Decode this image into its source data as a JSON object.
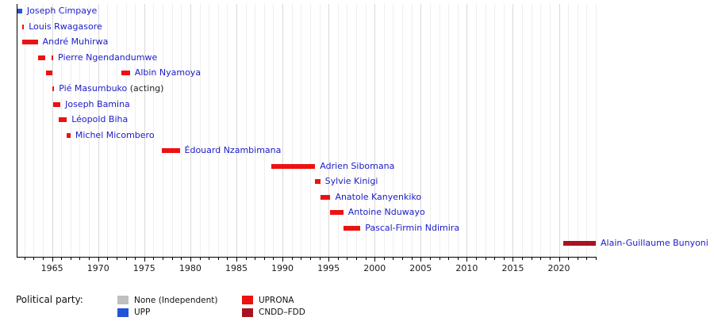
{
  "chart_data": {
    "type": "bar",
    "variant": "timeline-gantt",
    "title": "",
    "xlabel": "",
    "ylabel": "",
    "x_axis": {
      "domain": [
        1961.2,
        2024.0
      ],
      "major_ticks": [
        1965,
        1970,
        1975,
        1980,
        1985,
        1990,
        1995,
        2000,
        2005,
        2010,
        2015,
        2020
      ],
      "minor_tick_interval_years": 1,
      "grid": true
    },
    "parties": {
      "None (Independent)": "#bfbfbf",
      "UPP": "#2353d9",
      "UPRONA": "#ee1111",
      "CNDD–FDD": "#aa1120"
    },
    "rows": [
      {
        "name": "Joseph Cimpaye",
        "party": "UPP",
        "suffix": "",
        "segments": [
          [
            1961.2,
            1961.75
          ]
        ]
      },
      {
        "name": "Louis Rwagasore",
        "party": "UPRONA",
        "suffix": "",
        "segments": [
          [
            1961.78,
            1961.9
          ]
        ]
      },
      {
        "name": "André Muhirwa",
        "party": "UPRONA",
        "suffix": "",
        "segments": [
          [
            1961.8,
            1963.45
          ]
        ]
      },
      {
        "name": "Pierre Ngendandumwe",
        "party": "UPRONA",
        "suffix": "",
        "segments": [
          [
            1963.45,
            1964.3
          ],
          [
            1964.95,
            1965.05
          ]
        ]
      },
      {
        "name": "Albin Nyamoya",
        "party": "UPRONA",
        "suffix": "",
        "segments": [
          [
            1964.3,
            1965.0
          ],
          [
            1972.55,
            1973.45
          ]
        ]
      },
      {
        "name": "Pié Masumbuko",
        "party": "UPRONA",
        "suffix": " (acting)",
        "segments": [
          [
            1965.05,
            1965.15
          ]
        ]
      },
      {
        "name": "Joseph Bamina",
        "party": "UPRONA",
        "suffix": "",
        "segments": [
          [
            1965.1,
            1965.9
          ]
        ]
      },
      {
        "name": "Léopold Biha",
        "party": "UPRONA",
        "suffix": "",
        "segments": [
          [
            1965.7,
            1966.6
          ]
        ]
      },
      {
        "name": "Michel Micombero",
        "party": "UPRONA",
        "suffix": "",
        "segments": [
          [
            1966.55,
            1967.0
          ]
        ]
      },
      {
        "name": "Édouard Nzambimana",
        "party": "UPRONA",
        "suffix": "",
        "segments": [
          [
            1976.9,
            1978.85
          ]
        ]
      },
      {
        "name": "Adrien Sibomana",
        "party": "UPRONA",
        "suffix": "",
        "segments": [
          [
            1988.8,
            1993.55
          ]
        ]
      },
      {
        "name": "Sylvie Kinigi",
        "party": "UPRONA",
        "suffix": "",
        "segments": [
          [
            1993.5,
            1994.1
          ]
        ]
      },
      {
        "name": "Anatole Kanyenkiko",
        "party": "UPRONA",
        "suffix": "",
        "segments": [
          [
            1994.1,
            1995.2
          ]
        ]
      },
      {
        "name": "Antoine Nduwayo",
        "party": "UPRONA",
        "suffix": "",
        "segments": [
          [
            1995.15,
            1996.6
          ]
        ]
      },
      {
        "name": "Pascal-Firmin Ndimira",
        "party": "UPRONA",
        "suffix": "",
        "segments": [
          [
            1996.6,
            1998.45
          ]
        ]
      },
      {
        "name": "Alain-Guillaume Bunyoni",
        "party": "CNDD–FDD",
        "suffix": "",
        "segments": [
          [
            2020.5,
            2024.0
          ]
        ]
      }
    ],
    "legend": {
      "title": "Political party:",
      "position": "bottom-left",
      "entries": [
        {
          "label": "None (Independent)",
          "color": "#bfbfbf"
        },
        {
          "label": "UPP",
          "color": "#2353d9"
        },
        {
          "label": "UPRONA",
          "color": "#ee1111"
        },
        {
          "label": "CNDD–FDD",
          "color": "#aa1120"
        }
      ]
    }
  },
  "colors": {
    "name_label": "#1b1bc8",
    "acting_suffix": "#222222",
    "axis": "#000000",
    "tick_label": "#1a1a1a",
    "grid_minor": "#efefef",
    "grid_major": "#d9d9d9",
    "background": "#ffffff"
  }
}
